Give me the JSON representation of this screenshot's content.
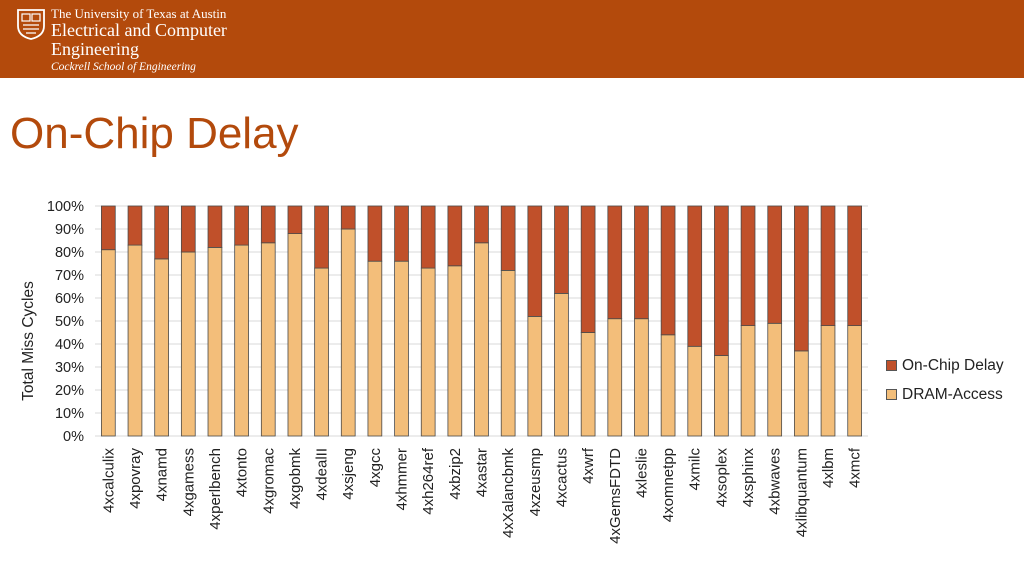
{
  "header": {
    "university": "The University of Texas at Austin",
    "department_line1": "Electrical and Computer",
    "department_line2": "Engineering",
    "school": "Cockrell School of Engineering"
  },
  "slide": {
    "title": "On-Chip Delay"
  },
  "colors": {
    "brand": "#b34a0c",
    "on_chip": "#c0502a",
    "dram": "#f3be7a"
  },
  "chart_data": {
    "type": "bar",
    "stacked": true,
    "percent": true,
    "categories": [
      "4xcalculix",
      "4xpovray",
      "4xnamd",
      "4xgamess",
      "4xperlbench",
      "4xtonto",
      "4xgromac",
      "4xgobmk",
      "4xdealII",
      "4xsjeng",
      "4xgcc",
      "4xhmmer",
      "4xh264ref",
      "4xbzip2",
      "4xastar",
      "4xXalancbmk",
      "4xzeusmp",
      "4xcactus",
      "4xwrf",
      "4xGemsFDTD",
      "4xleslie",
      "4xomnetpp",
      "4xmilc",
      "4xsoplex",
      "4xsphinx",
      "4xbwaves",
      "4xlibquantum",
      "4xlbm",
      "4xmcf"
    ],
    "series": [
      {
        "name": "DRAM-Access",
        "values": [
          81,
          83,
          77,
          80,
          82,
          83,
          84,
          88,
          73,
          90,
          76,
          76,
          73,
          74,
          84,
          72,
          52,
          62,
          45,
          51,
          51,
          44,
          39,
          35,
          48,
          49,
          37,
          48,
          48
        ]
      },
      {
        "name": "On-Chip Delay",
        "values": [
          19,
          17,
          23,
          20,
          18,
          17,
          16,
          12,
          27,
          10,
          24,
          24,
          27,
          26,
          16,
          28,
          48,
          38,
          55,
          49,
          49,
          56,
          61,
          65,
          52,
          51,
          63,
          52,
          52
        ]
      }
    ],
    "ylabel": "Total Miss Cycles",
    "xlabel": "",
    "ylim": [
      0,
      100
    ],
    "yticks": [
      "0%",
      "10%",
      "20%",
      "30%",
      "40%",
      "50%",
      "60%",
      "70%",
      "80%",
      "90%",
      "100%"
    ],
    "legend": {
      "position": "right",
      "items": [
        "On-Chip Delay",
        "DRAM-Access"
      ]
    },
    "grid": true
  }
}
